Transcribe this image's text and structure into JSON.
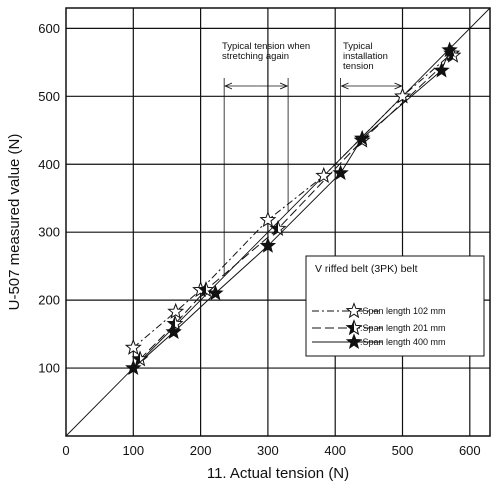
{
  "chart_data": {
    "type": "line",
    "xlabel": "11. Actual tension (N)",
    "ylabel": "U-507 measured value (N)",
    "xlim": [
      0,
      630
    ],
    "ylim": [
      0,
      630
    ],
    "x_ticks": [
      0,
      100,
      200,
      300,
      400,
      500,
      600
    ],
    "y_ticks": [
      100,
      200,
      300,
      400,
      500,
      600
    ],
    "grid": true,
    "reference_line": "y = x",
    "series": [
      {
        "name": ":Span length 102 mm",
        "marker": "open-star",
        "dash": "dash-dot",
        "points": [
          [
            100,
            130
          ],
          [
            163,
            183
          ],
          [
            200,
            215
          ],
          [
            300,
            318
          ],
          [
            383,
            383
          ],
          [
            500,
            500
          ],
          [
            573,
            563
          ]
        ]
      },
      {
        "name": ":Span length 201 mm",
        "marker": "half-star",
        "dash": "long-dash",
        "points": [
          [
            110,
            113
          ],
          [
            162,
            165
          ],
          [
            208,
            215
          ],
          [
            315,
            305
          ],
          [
            440,
            435
          ],
          [
            575,
            560
          ]
        ]
      },
      {
        "name": ":Span length 400 mm",
        "marker": "filled-star",
        "dash": "solid",
        "points": [
          [
            100,
            100
          ],
          [
            160,
            153
          ],
          [
            222,
            210
          ],
          [
            300,
            280
          ],
          [
            408,
            387
          ],
          [
            440,
            438
          ],
          [
            558,
            538
          ],
          [
            570,
            568
          ]
        ]
      }
    ],
    "annotations": [
      {
        "lines": [
          "Typical tension when",
          "stretching again"
        ],
        "range": [
          235,
          330
        ]
      },
      {
        "lines": [
          "Typical",
          "installation",
          "tension"
        ],
        "range": [
          408,
          500
        ]
      }
    ],
    "legend": {
      "title": "V riffed belt (3PK) belt",
      "placement": "lower-right"
    }
  }
}
